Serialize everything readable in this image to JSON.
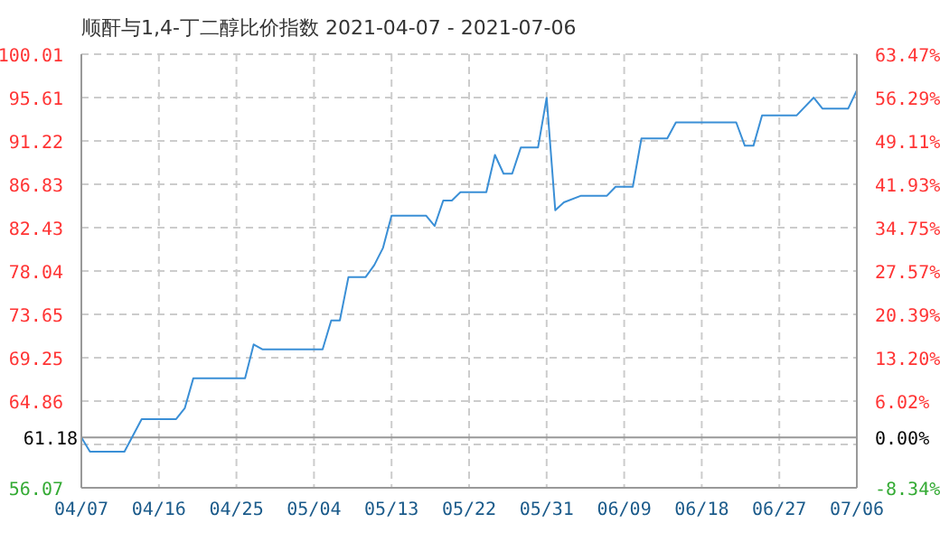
{
  "chart_data": {
    "type": "line",
    "title": "顺酐与1,4-丁二醇比价指数 2021-04-07 - 2021-07-06",
    "x": [
      "2021-04-07",
      "2021-04-08",
      "2021-04-12",
      "2021-04-14",
      "2021-04-18",
      "2021-04-19",
      "2021-04-20",
      "2021-04-26",
      "2021-04-27",
      "2021-04-28",
      "2021-05-05",
      "2021-05-06",
      "2021-05-07",
      "2021-05-08",
      "2021-05-10",
      "2021-05-11",
      "2021-05-12",
      "2021-05-13",
      "2021-05-17",
      "2021-05-18",
      "2021-05-19",
      "2021-05-20",
      "2021-05-21",
      "2021-05-24",
      "2021-05-25",
      "2021-05-26",
      "2021-05-27",
      "2021-05-28",
      "2021-05-30",
      "2021-05-31",
      "2021-06-01",
      "2021-06-02",
      "2021-06-04",
      "2021-06-07",
      "2021-06-08",
      "2021-06-10",
      "2021-06-11",
      "2021-06-14",
      "2021-06-15",
      "2021-06-22",
      "2021-06-23",
      "2021-06-24",
      "2021-06-25",
      "2021-06-29",
      "2021-07-01",
      "2021-07-02",
      "2021-07-05",
      "2021-07-06"
    ],
    "series": [
      {
        "color": "#3a8fd6",
        "values": [
          61.18,
          59.73,
          59.73,
          63.03,
          63.03,
          64.13,
          67.18,
          67.18,
          70.6,
          70.1,
          70.1,
          73.03,
          73.03,
          77.43,
          77.43,
          78.65,
          80.36,
          83.65,
          83.65,
          82.6,
          85.18,
          85.18,
          86.03,
          86.03,
          89.8,
          87.9,
          87.9,
          90.55,
          90.55,
          95.6,
          84.2,
          85.0,
          85.67,
          85.67,
          86.58,
          86.58,
          91.47,
          91.47,
          93.1,
          93.1,
          90.73,
          90.73,
          93.8,
          93.8,
          95.61,
          94.5,
          94.5,
          96.35
        ]
      }
    ],
    "xlim": [
      "2021-04-07",
      "2021-07-06"
    ],
    "xticks": [
      {
        "value": "2021-04-07",
        "label": "04/07"
      },
      {
        "value": "2021-04-16",
        "label": "04/16"
      },
      {
        "value": "2021-04-25",
        "label": "04/25"
      },
      {
        "value": "2021-05-04",
        "label": "05/04"
      },
      {
        "value": "2021-05-13",
        "label": "05/13"
      },
      {
        "value": "2021-05-22",
        "label": "05/22"
      },
      {
        "value": "2021-05-31",
        "label": "05/31"
      },
      {
        "value": "2021-06-09",
        "label": "06/09"
      },
      {
        "value": "2021-06-18",
        "label": "06/18"
      },
      {
        "value": "2021-06-27",
        "label": "06/27"
      },
      {
        "value": "2021-07-06",
        "label": "07/06"
      }
    ],
    "ylim": [
      56.07,
      100.01
    ],
    "yticks": [
      56.07,
      {
        "value": 60.46,
        "label": null
      },
      64.86,
      69.25,
      73.65,
      78.04,
      82.43,
      86.83,
      91.22,
      95.61,
      100.01
    ],
    "y2lim": [
      -8.34,
      63.47
    ],
    "y2ticks": [
      {
        "value": -8.34,
        "label": "-8.34%"
      },
      {
        "value": 0,
        "label": "0.00%"
      },
      {
        "value": 6.02,
        "label": "6.02%"
      },
      {
        "value": 13.2,
        "label": "13.20%"
      },
      {
        "value": 20.39,
        "label": "20.39%"
      },
      {
        "value": 27.57,
        "label": "27.57%"
      },
      {
        "value": 34.75,
        "label": "34.75%"
      },
      {
        "value": 41.93,
        "label": "41.93%"
      },
      {
        "value": 49.11,
        "label": "49.11%"
      },
      {
        "value": 56.29,
        "label": "56.29%"
      },
      {
        "value": 63.47,
        "label": "63.47%"
      }
    ],
    "ref_lines": [
      {
        "axis": "y",
        "value": 61.18,
        "label": "61.18",
        "color": "#999999"
      }
    ],
    "grid": true,
    "marker": "none",
    "line_style": "solid"
  }
}
